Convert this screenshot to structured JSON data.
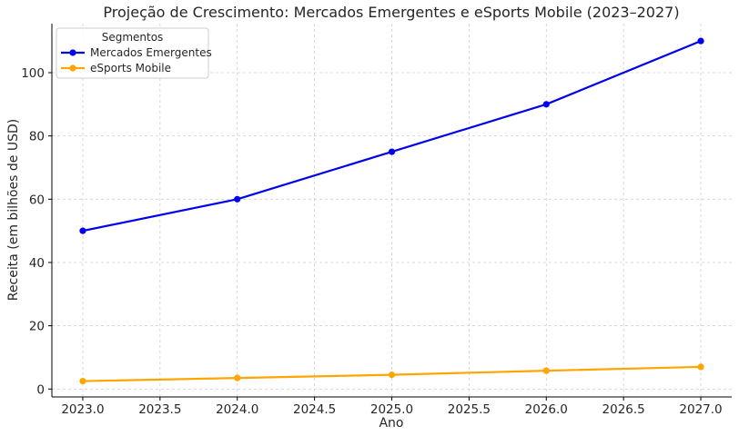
{
  "chart_data": {
    "type": "line",
    "title": "Projeção de Crescimento: Mercados Emergentes e eSports Mobile (2023–2027)",
    "xlabel": "Ano",
    "ylabel": "Receita (em bilhões de USD)",
    "xlim": [
      2022.8,
      2027.2
    ],
    "ylim": [
      -2.5,
      115.5
    ],
    "x_ticks": [
      "2023.0",
      "2023.5",
      "2024.0",
      "2024.5",
      "2025.0",
      "2025.5",
      "2026.0",
      "2026.5",
      "2027.0"
    ],
    "x_tick_values": [
      2023.0,
      2023.5,
      2024.0,
      2024.5,
      2025.0,
      2025.5,
      2026.0,
      2026.5,
      2027.0
    ],
    "y_ticks": [
      "0",
      "20",
      "40",
      "60",
      "80",
      "100"
    ],
    "y_tick_values": [
      0,
      20,
      40,
      60,
      80,
      100
    ],
    "grid": true,
    "legend": {
      "title": "Segmentos",
      "position": "top-left"
    },
    "x": [
      2023,
      2024,
      2025,
      2026,
      2027
    ],
    "series": [
      {
        "name": "Mercados Emergentes",
        "color": "#0000ee",
        "values": [
          50,
          60,
          75,
          90,
          110
        ]
      },
      {
        "name": "eSports Mobile",
        "color": "#ffa500",
        "values": [
          2.5,
          3.5,
          4.5,
          5.8,
          7.0
        ]
      }
    ]
  }
}
